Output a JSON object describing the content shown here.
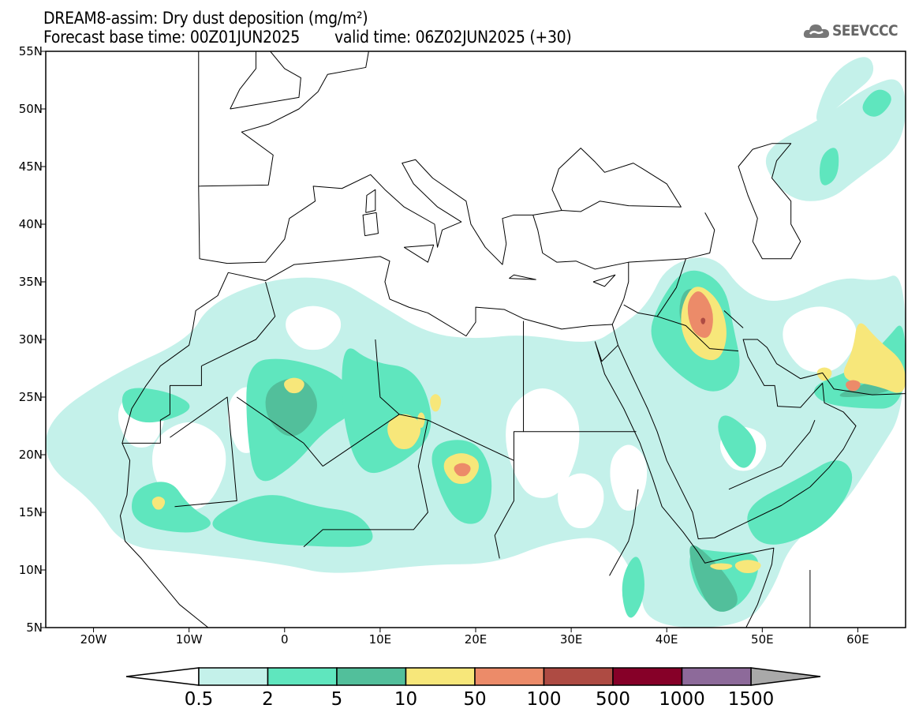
{
  "header": {
    "title": "DREAM8-assim: Dry dust deposition (mg/m²)",
    "base_time": "Forecast base time: 00Z01JUN2025",
    "valid_time": "valid time: 06Z02JUN2025 (+30)"
  },
  "logo": {
    "text": "SEEVCCC"
  },
  "map": {
    "lon_range": [
      -25,
      65
    ],
    "lat_range": [
      5,
      55
    ],
    "lat_labels": [
      {
        "lat": 55,
        "label": "55N"
      },
      {
        "lat": 50,
        "label": "50N"
      },
      {
        "lat": 45,
        "label": "45N"
      },
      {
        "lat": 40,
        "label": "40N"
      },
      {
        "lat": 35,
        "label": "35N"
      },
      {
        "lat": 30,
        "label": "30N"
      },
      {
        "lat": 25,
        "label": "25N"
      },
      {
        "lat": 20,
        "label": "20N"
      },
      {
        "lat": 15,
        "label": "15N"
      },
      {
        "lat": 10,
        "label": "10N"
      },
      {
        "lat": 5,
        "label": "5N"
      }
    ],
    "lon_labels": [
      {
        "lon": -20,
        "label": "20W"
      },
      {
        "lon": -10,
        "label": "10W"
      },
      {
        "lon": 0,
        "label": "0"
      },
      {
        "lon": 10,
        "label": "10E"
      },
      {
        "lon": 20,
        "label": "20E"
      },
      {
        "lon": 30,
        "label": "30E"
      },
      {
        "lon": 40,
        "label": "40E"
      },
      {
        "lon": 50,
        "label": "50E"
      },
      {
        "lon": 60,
        "label": "60E"
      }
    ]
  },
  "colorbar": {
    "under_color": "#ffffff",
    "over_color": "#a9a9a9",
    "bins": [
      "#c4f1ea",
      "#5fe6be",
      "#52bf9b",
      "#f7e77a",
      "#ec8b69",
      "#ae4b43",
      "#860028",
      "#8d6a9a"
    ],
    "labels": [
      "0.5",
      "2",
      "5",
      "10",
      "50",
      "100",
      "500",
      "1000",
      "1500"
    ]
  }
}
